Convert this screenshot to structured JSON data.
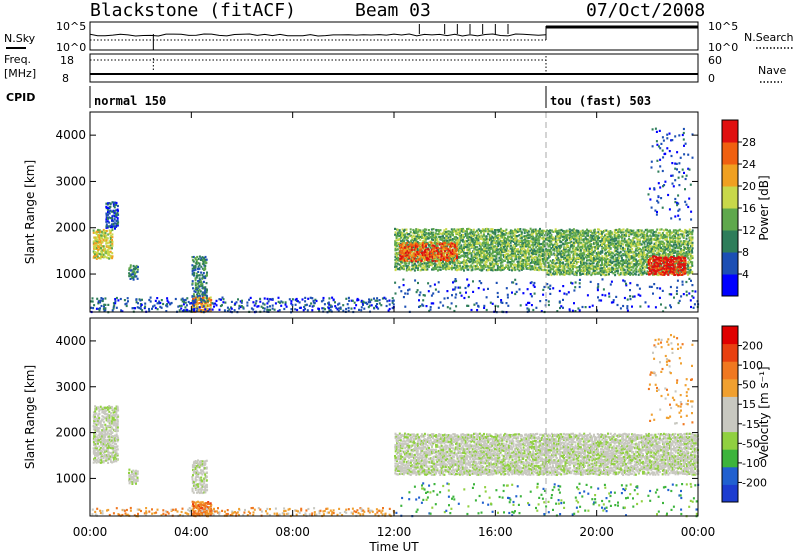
{
  "header": {
    "station": "Blackstone (fitACF)",
    "beam": "Beam 03",
    "date": "07/Oct/2008"
  },
  "top_panels": {
    "nsky_label": "N.Sky",
    "nsearch_label": "N.Search",
    "freq_label": "Freq.",
    "freq_unit": "[MHz]",
    "nave_label": "Nave",
    "cpid_label": "CPID",
    "noise_ticks": [
      "10^5",
      "10^0"
    ],
    "freq_ticks": [
      "18",
      "8"
    ],
    "nave_ticks": [
      "60",
      "0"
    ],
    "cpid_segments": [
      {
        "name": "normal 150",
        "start": 0,
        "end": 18
      },
      {
        "name": "tou (fast) 503",
        "start": 18,
        "end": 24
      }
    ]
  },
  "colors": {
    "power_scale": [
      "#0000ff",
      "#1c4fb4",
      "#2e7d5a",
      "#5fa84c",
      "#c8d84a",
      "#f0a020",
      "#f06010",
      "#e01010"
    ],
    "velocity_scale": [
      "#1c3ccf",
      "#2060d0",
      "#3cb43c",
      "#90d040",
      "#c8c8c0",
      "#c8c8c0",
      "#f0a030",
      "#f07820",
      "#e84010",
      "#e00000"
    ]
  },
  "chart_data": [
    {
      "type": "heatmap",
      "name": "power",
      "ylabel": "Slant Range [km]",
      "xlabel": "Time UT",
      "xlim": [
        0,
        24
      ],
      "ylim": [
        180,
        4500
      ],
      "x_ticks": [
        "00:00",
        "04:00",
        "08:00",
        "12:00",
        "16:00",
        "20:00",
        "00:00"
      ],
      "y_ticks": [
        1000,
        2000,
        3000,
        4000
      ],
      "colorbar": {
        "label": "Power [dB]",
        "ticks": [
          "28",
          "24",
          "20",
          "16",
          "12",
          "8",
          "4"
        ]
      },
      "scatter_regions": [
        {
          "t0": 0.1,
          "t1": 0.9,
          "r0": 1350,
          "r1": 2000,
          "level": 4,
          "density": 0.85
        },
        {
          "t0": 0.6,
          "t1": 1.1,
          "r0": 2000,
          "r1": 2600,
          "level": 1,
          "density": 0.7
        },
        {
          "t0": 1.5,
          "t1": 1.9,
          "r0": 900,
          "r1": 1200,
          "level": 2,
          "density": 0.8
        },
        {
          "t0": 4.0,
          "t1": 4.6,
          "r0": 500,
          "r1": 1400,
          "level": 2,
          "density": 0.7
        },
        {
          "t0": 4.0,
          "t1": 4.8,
          "r0": 200,
          "r1": 500,
          "level": 5,
          "density": 0.9
        },
        {
          "t0": 0.0,
          "t1": 12.0,
          "r0": 200,
          "r1": 500,
          "level": 1,
          "density": 0.25
        },
        {
          "t0": 12.0,
          "t1": 18.0,
          "r0": 1100,
          "r1": 2000,
          "level": 3,
          "density": 0.8
        },
        {
          "t0": 12.2,
          "t1": 14.5,
          "r0": 1300,
          "r1": 1700,
          "level": 6,
          "density": 0.7
        },
        {
          "t0": 18.0,
          "t1": 23.8,
          "r0": 1000,
          "r1": 2000,
          "level": 3,
          "density": 0.8
        },
        {
          "t0": 22.0,
          "t1": 23.5,
          "r0": 1000,
          "r1": 1400,
          "level": 7,
          "density": 0.8
        },
        {
          "t0": 12.0,
          "t1": 24.0,
          "r0": 200,
          "r1": 900,
          "level": 1,
          "density": 0.08
        },
        {
          "t0": 22.0,
          "t1": 23.8,
          "r0": 2200,
          "r1": 4200,
          "level": 1,
          "density": 0.08
        }
      ]
    },
    {
      "type": "heatmap",
      "name": "velocity",
      "ylabel": "Slant Range [km]",
      "xlabel": "Time UT",
      "xlim": [
        0,
        24
      ],
      "ylim": [
        180,
        4500
      ],
      "x_ticks": [
        "00:00",
        "04:00",
        "08:00",
        "12:00",
        "16:00",
        "20:00",
        "00:00"
      ],
      "y_ticks": [
        1000,
        2000,
        3000,
        4000
      ],
      "colorbar": {
        "label": "Velocity [m s⁻¹]",
        "ticks": [
          "200",
          "100",
          "50",
          "15",
          "-15",
          "-50",
          "-100",
          "-200"
        ]
      },
      "scatter_regions": [
        {
          "t0": 0.1,
          "t1": 1.1,
          "r0": 1350,
          "r1": 2600,
          "level": 4,
          "density": 0.8
        },
        {
          "t0": 1.5,
          "t1": 1.9,
          "r0": 900,
          "r1": 1200,
          "level": 4,
          "density": 0.8
        },
        {
          "t0": 4.0,
          "t1": 4.6,
          "r0": 700,
          "r1": 1400,
          "level": 4,
          "density": 0.7
        },
        {
          "t0": 4.0,
          "t1": 4.8,
          "r0": 200,
          "r1": 500,
          "level": 7,
          "density": 0.9
        },
        {
          "t0": 0.0,
          "t1": 12.0,
          "r0": 200,
          "r1": 400,
          "level": 6,
          "density": 0.25
        },
        {
          "t0": 12.0,
          "t1": 24.0,
          "r0": 1100,
          "r1": 2000,
          "level": 4,
          "density": 0.85
        },
        {
          "t0": 12.0,
          "t1": 24.0,
          "r0": 200,
          "r1": 900,
          "level": 2,
          "density": 0.06
        },
        {
          "t0": 22.0,
          "t1": 23.8,
          "r0": 2200,
          "r1": 4200,
          "level": 6,
          "density": 0.06
        }
      ]
    }
  ]
}
